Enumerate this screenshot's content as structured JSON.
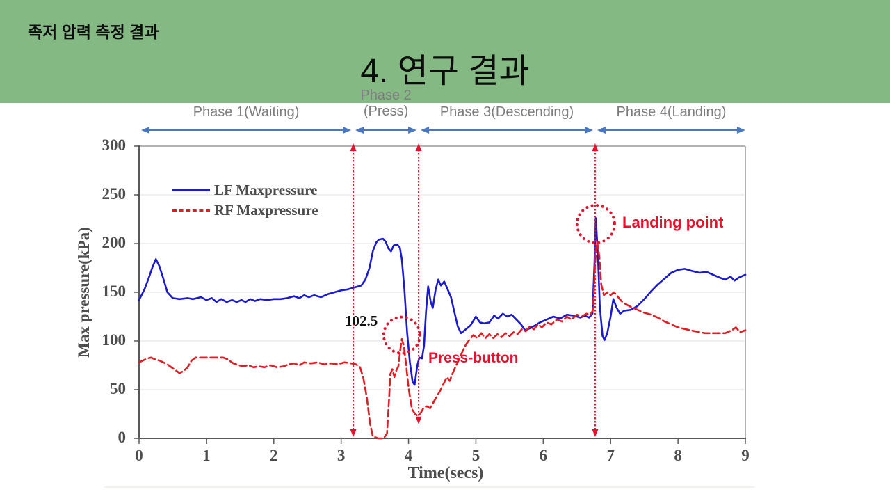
{
  "slide": {
    "header": "족저 압력 측정 결과",
    "title": "4. 연구 결과"
  },
  "phases": [
    {
      "label": "Phase 1(Waiting)",
      "sub": "",
      "from": 0,
      "to": 3.18
    },
    {
      "label": "Phase 2",
      "sub": "(Press)",
      "from": 3.18,
      "to": 4.15
    },
    {
      "label": "Phase 3(Descending)",
      "sub": "",
      "from": 4.15,
      "to": 6.77
    },
    {
      "label": "Phase 4(Landing)",
      "sub": "",
      "from": 6.77,
      "to": 9.03
    }
  ],
  "colors": {
    "banner_green": "#84b984",
    "lf_blue": "#1b1bcd",
    "rf_red": "#e01d23",
    "phase_arrow_blue": "#4a77bd",
    "annotation_red": "#e8112d",
    "axis_grey": "#4d4d4d",
    "phase_label_grey": "#7d7d7d",
    "gridline_grey": "#ebebeb"
  },
  "chart_data": {
    "type": "line",
    "title": "",
    "xlabel": "Time(secs)",
    "ylabel": "Max pressure(kPa)",
    "xlim": [
      0,
      9
    ],
    "ylim": [
      0,
      300
    ],
    "xticks": [
      0,
      1,
      2,
      3,
      4,
      5,
      6,
      7,
      8,
      9
    ],
    "yticks": [
      0,
      50,
      100,
      150,
      200,
      250,
      300
    ],
    "grid": "horizontal-faint",
    "legend_position": "top-left-inside",
    "annotations": {
      "value_label": "102.5",
      "press_button": "Press-button",
      "landing_point": "Landing point"
    },
    "events": [
      {
        "t": 3.18,
        "v_from": 0,
        "v_to": 300
      },
      {
        "t": 4.15,
        "v_from": 13,
        "v_to": 300
      },
      {
        "t": 6.77,
        "v_from": 0,
        "v_to": 300
      }
    ],
    "circles": [
      {
        "t": 3.9,
        "v": 106,
        "r": 26
      },
      {
        "t": 6.78,
        "v": 220,
        "r": 27
      }
    ],
    "series": [
      {
        "name": "LF Maxpressure",
        "color": "#1b1bcd",
        "style": "solid",
        "points": [
          [
            0,
            142
          ],
          [
            0.08,
            153
          ],
          [
            0.14,
            164
          ],
          [
            0.2,
            176
          ],
          [
            0.25,
            184
          ],
          [
            0.3,
            177
          ],
          [
            0.36,
            164
          ],
          [
            0.42,
            150
          ],
          [
            0.5,
            144
          ],
          [
            0.6,
            143
          ],
          [
            0.72,
            144
          ],
          [
            0.8,
            143
          ],
          [
            0.92,
            145
          ],
          [
            1.0,
            142
          ],
          [
            1.08,
            144
          ],
          [
            1.15,
            140
          ],
          [
            1.22,
            143
          ],
          [
            1.3,
            140
          ],
          [
            1.38,
            142
          ],
          [
            1.45,
            140
          ],
          [
            1.52,
            142
          ],
          [
            1.58,
            140
          ],
          [
            1.65,
            143
          ],
          [
            1.72,
            141
          ],
          [
            1.8,
            143
          ],
          [
            1.9,
            142
          ],
          [
            2.0,
            143
          ],
          [
            2.1,
            143
          ],
          [
            2.2,
            144
          ],
          [
            2.3,
            146
          ],
          [
            2.38,
            144
          ],
          [
            2.45,
            147
          ],
          [
            2.52,
            145
          ],
          [
            2.6,
            147
          ],
          [
            2.7,
            145
          ],
          [
            2.8,
            148
          ],
          [
            2.9,
            150
          ],
          [
            3.0,
            152
          ],
          [
            3.1,
            153
          ],
          [
            3.2,
            155
          ],
          [
            3.3,
            157
          ],
          [
            3.36,
            163
          ],
          [
            3.42,
            175
          ],
          [
            3.47,
            192
          ],
          [
            3.52,
            201
          ],
          [
            3.56,
            204
          ],
          [
            3.62,
            205
          ],
          [
            3.66,
            202
          ],
          [
            3.7,
            195
          ],
          [
            3.74,
            192
          ],
          [
            3.78,
            198
          ],
          [
            3.83,
            199
          ],
          [
            3.87,
            196
          ],
          [
            3.9,
            184
          ],
          [
            3.94,
            152
          ],
          [
            3.98,
            108
          ],
          [
            4.02,
            78
          ],
          [
            4.06,
            58
          ],
          [
            4.09,
            55
          ],
          [
            4.13,
            75
          ],
          [
            4.16,
            83
          ],
          [
            4.2,
            82
          ],
          [
            4.23,
            95
          ],
          [
            4.26,
            130
          ],
          [
            4.29,
            156
          ],
          [
            4.33,
            140
          ],
          [
            4.36,
            134
          ],
          [
            4.4,
            152
          ],
          [
            4.44,
            163
          ],
          [
            4.48,
            157
          ],
          [
            4.53,
            161
          ],
          [
            4.58,
            153
          ],
          [
            4.63,
            145
          ],
          [
            4.68,
            130
          ],
          [
            4.73,
            115
          ],
          [
            4.78,
            108
          ],
          [
            4.85,
            112
          ],
          [
            4.92,
            116
          ],
          [
            5.0,
            125
          ],
          [
            5.06,
            119
          ],
          [
            5.12,
            118
          ],
          [
            5.2,
            119
          ],
          [
            5.27,
            126
          ],
          [
            5.33,
            123
          ],
          [
            5.4,
            128
          ],
          [
            5.47,
            125
          ],
          [
            5.53,
            127
          ],
          [
            5.6,
            122
          ],
          [
            5.67,
            117
          ],
          [
            5.73,
            111
          ],
          [
            5.8,
            113
          ],
          [
            5.88,
            116
          ],
          [
            5.95,
            119
          ],
          [
            6.05,
            122
          ],
          [
            6.15,
            125
          ],
          [
            6.25,
            123
          ],
          [
            6.35,
            127
          ],
          [
            6.45,
            126
          ],
          [
            6.55,
            124
          ],
          [
            6.62,
            126
          ],
          [
            6.68,
            124
          ],
          [
            6.73,
            128
          ],
          [
            6.76,
            180
          ],
          [
            6.78,
            226
          ],
          [
            6.81,
            190
          ],
          [
            6.84,
            135
          ],
          [
            6.88,
            105
          ],
          [
            6.91,
            101
          ],
          [
            6.95,
            108
          ],
          [
            7.0,
            125
          ],
          [
            7.04,
            143
          ],
          [
            7.09,
            134
          ],
          [
            7.14,
            128
          ],
          [
            7.2,
            131
          ],
          [
            7.3,
            132
          ],
          [
            7.4,
            136
          ],
          [
            7.5,
            143
          ],
          [
            7.6,
            151
          ],
          [
            7.7,
            158
          ],
          [
            7.8,
            164
          ],
          [
            7.9,
            170
          ],
          [
            8.0,
            173
          ],
          [
            8.1,
            174
          ],
          [
            8.2,
            172
          ],
          [
            8.32,
            170
          ],
          [
            8.42,
            171
          ],
          [
            8.52,
            168
          ],
          [
            8.62,
            165
          ],
          [
            8.7,
            163
          ],
          [
            8.78,
            166
          ],
          [
            8.84,
            162
          ],
          [
            8.9,
            165
          ],
          [
            9.0,
            168
          ]
        ]
      },
      {
        "name": "RF Maxpressure",
        "color": "#e01d23",
        "style": "dashed",
        "points": [
          [
            0,
            78
          ],
          [
            0.06,
            80
          ],
          [
            0.12,
            82
          ],
          [
            0.18,
            83
          ],
          [
            0.24,
            81
          ],
          [
            0.3,
            80
          ],
          [
            0.36,
            78
          ],
          [
            0.42,
            76
          ],
          [
            0.48,
            73
          ],
          [
            0.54,
            70
          ],
          [
            0.6,
            67
          ],
          [
            0.66,
            69
          ],
          [
            0.72,
            73
          ],
          [
            0.78,
            80
          ],
          [
            0.84,
            83
          ],
          [
            0.95,
            83
          ],
          [
            1.1,
            83
          ],
          [
            1.25,
            83
          ],
          [
            1.32,
            81
          ],
          [
            1.4,
            77
          ],
          [
            1.48,
            75
          ],
          [
            1.55,
            74
          ],
          [
            1.62,
            75
          ],
          [
            1.7,
            73
          ],
          [
            1.78,
            74
          ],
          [
            1.86,
            73
          ],
          [
            1.95,
            75
          ],
          [
            2.05,
            73
          ],
          [
            2.15,
            74
          ],
          [
            2.22,
            76
          ],
          [
            2.3,
            77
          ],
          [
            2.38,
            75
          ],
          [
            2.45,
            78
          ],
          [
            2.55,
            77
          ],
          [
            2.65,
            78
          ],
          [
            2.75,
            76
          ],
          [
            2.85,
            77
          ],
          [
            2.95,
            76
          ],
          [
            3.05,
            78
          ],
          [
            3.15,
            77
          ],
          [
            3.22,
            76
          ],
          [
            3.28,
            73
          ],
          [
            3.33,
            62
          ],
          [
            3.38,
            42
          ],
          [
            3.43,
            15
          ],
          [
            3.47,
            2
          ],
          [
            3.55,
            0
          ],
          [
            3.63,
            0
          ],
          [
            3.68,
            5
          ],
          [
            3.71,
            40
          ],
          [
            3.73,
            66
          ],
          [
            3.76,
            71
          ],
          [
            3.79,
            63
          ],
          [
            3.82,
            70
          ],
          [
            3.85,
            74
          ],
          [
            3.88,
            92
          ],
          [
            3.9,
            102
          ],
          [
            3.93,
            95
          ],
          [
            3.96,
            78
          ],
          [
            4.0,
            52
          ],
          [
            4.05,
            30
          ],
          [
            4.1,
            25
          ],
          [
            4.14,
            23
          ],
          [
            4.18,
            26
          ],
          [
            4.22,
            31
          ],
          [
            4.27,
            33
          ],
          [
            4.32,
            31
          ],
          [
            4.37,
            37
          ],
          [
            4.42,
            43
          ],
          [
            4.47,
            49
          ],
          [
            4.52,
            56
          ],
          [
            4.57,
            63
          ],
          [
            4.61,
            59
          ],
          [
            4.65,
            66
          ],
          [
            4.7,
            74
          ],
          [
            4.75,
            81
          ],
          [
            4.8,
            89
          ],
          [
            4.85,
            96
          ],
          [
            4.9,
            101
          ],
          [
            4.96,
            106
          ],
          [
            5.02,
            103
          ],
          [
            5.08,
            108
          ],
          [
            5.14,
            103
          ],
          [
            5.2,
            107
          ],
          [
            5.26,
            103
          ],
          [
            5.32,
            107
          ],
          [
            5.38,
            104
          ],
          [
            5.44,
            108
          ],
          [
            5.5,
            105
          ],
          [
            5.56,
            109
          ],
          [
            5.62,
            107
          ],
          [
            5.68,
            112
          ],
          [
            5.74,
            110
          ],
          [
            5.8,
            115
          ],
          [
            5.86,
            112
          ],
          [
            5.92,
            117
          ],
          [
            5.98,
            114
          ],
          [
            6.05,
            119
          ],
          [
            6.12,
            117
          ],
          [
            6.2,
            122
          ],
          [
            6.28,
            120
          ],
          [
            6.35,
            125
          ],
          [
            6.42,
            122
          ],
          [
            6.5,
            127
          ],
          [
            6.57,
            125
          ],
          [
            6.64,
            128
          ],
          [
            6.7,
            127
          ],
          [
            6.74,
            132
          ],
          [
            6.77,
            180
          ],
          [
            6.8,
            202
          ],
          [
            6.83,
            188
          ],
          [
            6.86,
            158
          ],
          [
            6.9,
            147
          ],
          [
            6.95,
            150
          ],
          [
            7.0,
            147
          ],
          [
            7.05,
            150
          ],
          [
            7.1,
            146
          ],
          [
            7.16,
            141
          ],
          [
            7.22,
            138
          ],
          [
            7.3,
            135
          ],
          [
            7.4,
            132
          ],
          [
            7.5,
            129
          ],
          [
            7.6,
            127
          ],
          [
            7.7,
            124
          ],
          [
            7.8,
            120
          ],
          [
            7.9,
            117
          ],
          [
            8.0,
            114
          ],
          [
            8.12,
            112
          ],
          [
            8.25,
            110
          ],
          [
            8.4,
            108
          ],
          [
            8.55,
            108
          ],
          [
            8.7,
            108
          ],
          [
            8.8,
            111
          ],
          [
            8.86,
            114
          ],
          [
            8.92,
            109
          ],
          [
            9.0,
            111
          ]
        ]
      }
    ]
  }
}
